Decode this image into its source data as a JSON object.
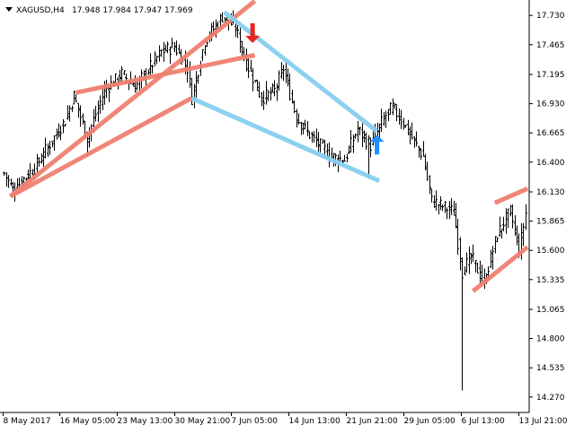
{
  "header": {
    "symbol_timeframe": "XAGUSD,H4",
    "ohlc": "17.948 17.984 17.947 17.969"
  },
  "colors": {
    "background": "#ffffff",
    "bars": "#000000",
    "axis": "#000000",
    "channel_red": "#f08070",
    "channel_blue": "#87cef0",
    "sell_arrow": "#e8251b",
    "buy_arrow": "#1e90ff"
  },
  "chart_data": {
    "type": "ohlc",
    "title": "",
    "xlabel": "",
    "ylabel": "",
    "ylim": [
      14.13,
      17.87
    ],
    "y_ticks": [
      "17.730",
      "17.465",
      "17.195",
      "16.930",
      "16.665",
      "16.400",
      "16.130",
      "15.865",
      "15.600",
      "15.335",
      "15.065",
      "14.800",
      "14.535",
      "14.270"
    ],
    "x_ticks": [
      "8 May 2017",
      "16 May 05:00",
      "23 May 13:00",
      "30 May 21:00",
      "7 Jun 05:00",
      "14 Jun 13:00",
      "21 Jun 21:00",
      "29 Jun 05:00",
      "6 Jul 13:00",
      "13 Jul 21:00"
    ],
    "bars_count": 240,
    "price_path": [
      [
        0,
        16.3
      ],
      [
        4,
        16.15
      ],
      [
        14,
        16.35
      ],
      [
        28,
        16.78
      ],
      [
        32,
        17.0
      ],
      [
        38,
        16.62
      ],
      [
        46,
        17.05
      ],
      [
        54,
        17.2
      ],
      [
        60,
        17.08
      ],
      [
        72,
        17.4
      ],
      [
        78,
        17.45
      ],
      [
        84,
        17.25
      ],
      [
        86,
        16.98
      ],
      [
        92,
        17.5
      ],
      [
        100,
        17.72
      ],
      [
        106,
        17.62
      ],
      [
        110,
        17.35
      ],
      [
        118,
        16.98
      ],
      [
        124,
        17.05
      ],
      [
        128,
        17.25
      ],
      [
        134,
        16.8
      ],
      [
        140,
        16.65
      ],
      [
        150,
        16.45
      ],
      [
        156,
        16.42
      ],
      [
        162,
        16.7
      ],
      [
        168,
        16.55
      ],
      [
        174,
        16.8
      ],
      [
        178,
        16.9
      ],
      [
        184,
        16.72
      ],
      [
        192,
        16.45
      ],
      [
        196,
        16.05
      ],
      [
        206,
        15.95
      ],
      [
        210,
        15.4
      ],
      [
        214,
        15.55
      ],
      [
        220,
        15.3
      ],
      [
        226,
        15.75
      ],
      [
        232,
        15.95
      ],
      [
        236,
        15.6
      ],
      [
        240,
        16.05
      ]
    ],
    "spikes": [
      {
        "bar": 38,
        "low": 16.45
      },
      {
        "bar": 86,
        "low": 16.98
      },
      {
        "bar": 167,
        "low": 16.25
      },
      {
        "bar": 210,
        "low": 14.33
      }
    ],
    "channels": [
      {
        "color": "red",
        "points": [
          [
            3,
            16.09
          ],
          [
            115,
            17.86
          ]
        ]
      },
      {
        "color": "red",
        "points": [
          [
            33,
            17.03
          ],
          [
            115,
            17.37
          ]
        ]
      },
      {
        "color": "red",
        "points": [
          [
            3,
            16.09
          ],
          [
            86,
            16.98
          ]
        ]
      },
      {
        "color": "blue",
        "points": [
          [
            101,
            17.76
          ],
          [
            171,
            16.68
          ]
        ]
      },
      {
        "color": "blue",
        "points": [
          [
            86,
            16.98
          ],
          [
            172,
            16.23
          ]
        ]
      },
      {
        "color": "red",
        "points": [
          [
            225,
            16.03
          ],
          [
            240,
            16.16
          ]
        ]
      },
      {
        "color": "red",
        "points": [
          [
            215,
            15.23
          ],
          [
            240,
            15.63
          ]
        ]
      }
    ],
    "signals": [
      {
        "type": "sell",
        "bar": 114,
        "price": 17.48
      },
      {
        "type": "buy",
        "bar": 171,
        "price": 16.47
      }
    ]
  }
}
